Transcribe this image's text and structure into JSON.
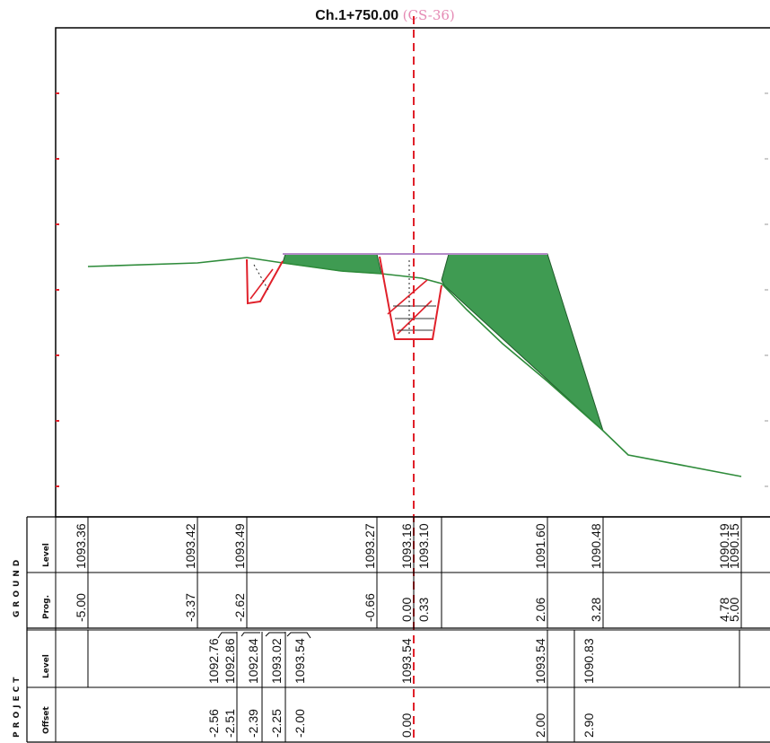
{
  "title": {
    "chainage": "Ch.1+750.00",
    "section": "(CS-36)"
  },
  "colors": {
    "ground_line": "#2e8b3a",
    "fill_area": "#3f9b52",
    "cut_section": "#e0202a",
    "grid_frame": "#000000",
    "centerline": "#e0202a",
    "formation": "#b48ac8",
    "section_label": "#e58ab4"
  },
  "table": {
    "ground": {
      "group_label": "GROUND",
      "level_label": "Level",
      "prog_label": "Prog.",
      "rows": [
        {
          "level": "1093.36",
          "prog": "-5.00"
        },
        {
          "level": "1093.42",
          "prog": "-3.37"
        },
        {
          "level": "1093.49",
          "prog": "-2.62"
        },
        {
          "level": "1093.27",
          "prog": "-0.66"
        },
        {
          "level": "1093.16",
          "prog": "0.00"
        },
        {
          "level": "1093.10",
          "prog": "0.33"
        },
        {
          "level": "1091.60",
          "prog": "2.06"
        },
        {
          "level": "1090.48",
          "prog": "3.28"
        },
        {
          "level": "1090.19",
          "prog": "4.78"
        },
        {
          "level": "1090.15",
          "prog": "5.00"
        }
      ]
    },
    "project": {
      "group_label": "PROJECT",
      "level_label": "Level",
      "offset_label": "Offset",
      "rows": [
        {
          "level": "1092.76",
          "offset": "-2.56"
        },
        {
          "level": "1092.86",
          "offset": "-2.51"
        },
        {
          "level": "1092.84",
          "offset": "-2.39"
        },
        {
          "level": "1093.02",
          "offset": "-2.25"
        },
        {
          "level": "1093.54",
          "offset": "-2.00"
        },
        {
          "level": "1093.54",
          "offset": "0.00"
        },
        {
          "level": "1093.54",
          "offset": "2.00"
        },
        {
          "level": "1090.83",
          "offset": "2.90"
        }
      ]
    }
  }
}
